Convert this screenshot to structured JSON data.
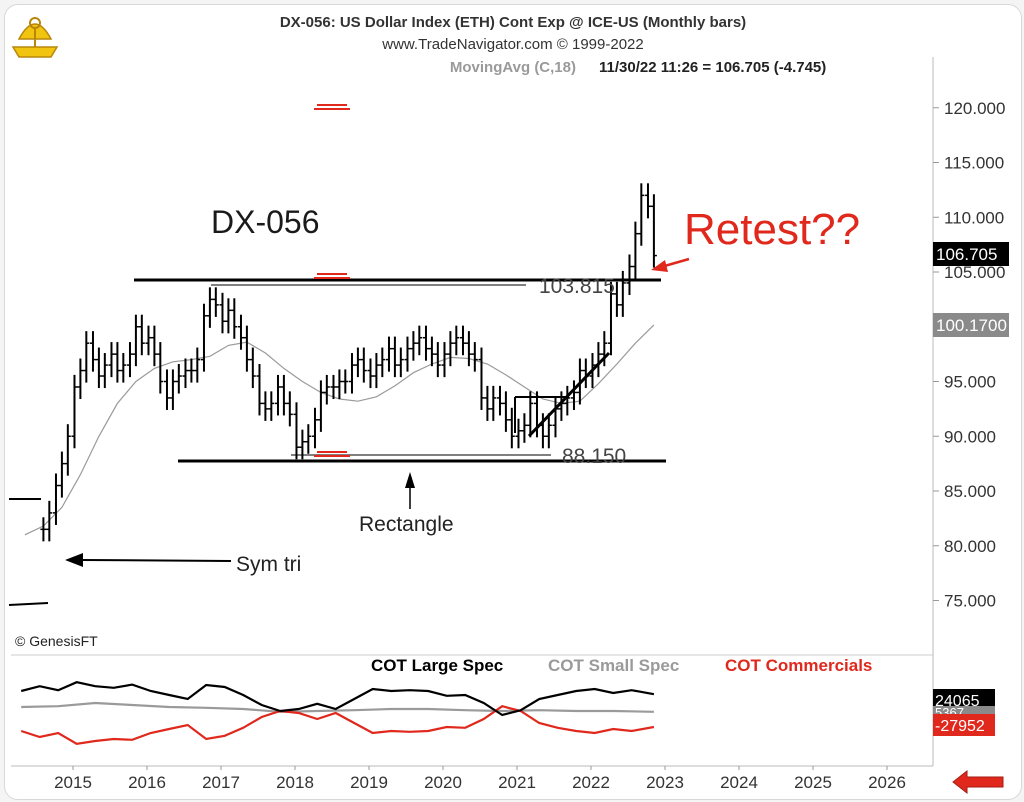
{
  "header": {
    "title": "DX-056:  US Dollar Index (ETH) Cont Exp @ ICE-US  (Monthly bars)",
    "copyright": "www.TradeNavigator.com © 1999-2022",
    "ma_label": "MovingAvg (C,18)",
    "price_readout": "11/30/22 11:26 = 106.705 (-4.745)"
  },
  "price_badges": {
    "last": "106.705",
    "ma": "100.1700"
  },
  "lower_badges": {
    "large_spec": "24065",
    "small_spec": "5367",
    "commercials": "-27952"
  },
  "watermark": "© GenesisFT",
  "annotations": {
    "symbol": "DX-056",
    "retest": "Retest??",
    "level_top": "103.815",
    "level_bottom": "88.150",
    "rectangle": "Rectangle",
    "sym_tri": "Sym tri"
  },
  "colors": {
    "price": "#000000",
    "ma": "#9a9a9a",
    "accent": "#e0281c",
    "large_spec": "#000000",
    "small_spec": "#9a9a9a",
    "commercials": "#e0281c"
  },
  "icons": {
    "logo": "sextant-logo-icon",
    "back": "back-arrow-icon"
  },
  "chart_data": [
    {
      "type": "line",
      "title": "DX-056:  US Dollar Index (ETH) Cont Exp @ ICE-US  (Monthly bars)",
      "y_ticks": [
        "120.000",
        "115.000",
        "110.000",
        "105.000",
        "100.000",
        "95.000",
        "90.000",
        "85.000",
        "80.000",
        "75.000"
      ],
      "x_ticks": [
        "2015",
        "2016",
        "2017",
        "2018",
        "2019",
        "2020",
        "2021",
        "2022",
        "2023",
        "2024",
        "2025",
        "2026"
      ],
      "ylim": [
        70,
        124
      ],
      "xlim": [
        2014.2,
        2026.8
      ],
      "series": [
        {
          "name": "Monthly bars",
          "x": [
            2014.6,
            2014.68,
            2014.77,
            2014.85,
            2014.93,
            2015.02,
            2015.1,
            2015.18,
            2015.27,
            2015.35,
            2015.43,
            2015.52,
            2015.6,
            2015.68,
            2015.77,
            2015.85,
            2015.93,
            2016.02,
            2016.1,
            2016.18,
            2016.27,
            2016.35,
            2016.43,
            2016.52,
            2016.6,
            2016.68,
            2016.77,
            2016.85,
            2016.93,
            2017.02,
            2017.1,
            2017.18,
            2017.27,
            2017.35,
            2017.43,
            2017.52,
            2017.6,
            2017.68,
            2017.77,
            2017.85,
            2017.93,
            2018.02,
            2018.1,
            2018.18,
            2018.27,
            2018.35,
            2018.43,
            2018.52,
            2018.6,
            2018.68,
            2018.77,
            2018.85,
            2018.93,
            2019.02,
            2019.1,
            2019.18,
            2019.27,
            2019.35,
            2019.43,
            2019.52,
            2019.6,
            2019.68,
            2019.77,
            2019.85,
            2019.93,
            2020.02,
            2020.1,
            2020.18,
            2020.27,
            2020.35,
            2020.43,
            2020.52,
            2020.6,
            2020.68,
            2020.77,
            2020.85,
            2020.93,
            2021.02,
            2021.1,
            2021.18,
            2021.27,
            2021.35,
            2021.43,
            2021.52,
            2021.6,
            2021.68,
            2021.77,
            2021.85,
            2021.93,
            2022.02,
            2022.1,
            2022.18,
            2022.27,
            2022.35,
            2022.43,
            2022.52,
            2022.6,
            2022.68,
            2022.77,
            2022.85
          ],
          "y": [
            81.5,
            83.0,
            85.5,
            87.5,
            90.0,
            94.5,
            96.0,
            98.5,
            97.0,
            95.5,
            96.5,
            97.5,
            96.0,
            96.5,
            97.5,
            100.0,
            98.5,
            99.0,
            97.5,
            95.0,
            93.5,
            95.0,
            95.5,
            96.0,
            96.0,
            97.0,
            101.0,
            102.5,
            102.0,
            100.5,
            101.5,
            100.0,
            99.0,
            97.0,
            95.5,
            93.0,
            92.5,
            93.0,
            94.5,
            93.0,
            92.0,
            89.0,
            89.5,
            90.0,
            91.5,
            94.0,
            94.5,
            94.5,
            95.0,
            95.0,
            96.5,
            97.0,
            96.0,
            95.5,
            96.5,
            97.0,
            98.0,
            96.5,
            97.0,
            98.0,
            98.5,
            99.0,
            98.0,
            97.5,
            96.5,
            97.5,
            98.5,
            99.0,
            98.5,
            97.5,
            97.0,
            93.5,
            92.5,
            93.5,
            93.0,
            91.5,
            90.0,
            90.5,
            91.0,
            93.0,
            91.0,
            90.0,
            91.0,
            92.5,
            93.0,
            93.5,
            94.0,
            96.0,
            95.5,
            96.5,
            97.5,
            98.5,
            103.0,
            102.0,
            104.0,
            105.5,
            108.5,
            112.0,
            111.0,
            106.5
          ]
        },
        {
          "name": "MovingAvg (C,18)",
          "x": [
            2014.35,
            2014.6,
            2014.85,
            2015.1,
            2015.35,
            2015.6,
            2015.85,
            2016.1,
            2016.35,
            2016.6,
            2016.85,
            2017.1,
            2017.35,
            2017.6,
            2017.85,
            2018.1,
            2018.35,
            2018.6,
            2018.85,
            2019.1,
            2019.35,
            2019.6,
            2019.85,
            2020.1,
            2020.35,
            2020.6,
            2020.85,
            2021.1,
            2021.35,
            2021.6,
            2021.85,
            2022.1,
            2022.35,
            2022.6,
            2022.85
          ],
          "y": [
            81.0,
            81.8,
            83.5,
            86.5,
            90.0,
            93.0,
            95.0,
            96.2,
            96.8,
            97.0,
            97.3,
            98.3,
            98.6,
            97.6,
            96.2,
            95.0,
            94.0,
            93.4,
            93.2,
            93.6,
            94.6,
            95.8,
            96.6,
            97.2,
            97.1,
            96.6,
            95.6,
            94.5,
            93.4,
            93.0,
            93.2,
            94.8,
            96.6,
            98.5,
            100.17
          ]
        }
      ]
    },
    {
      "type": "line",
      "title": "",
      "x_ticks": [
        "2015",
        "2016",
        "2017",
        "2018",
        "2019",
        "2020",
        "2021",
        "2022",
        "2023",
        "2024",
        "2025",
        "2026"
      ],
      "series": [
        {
          "name": "COT Large Spec",
          "x": [
            2014.3,
            2014.55,
            2014.8,
            2015.05,
            2015.3,
            2015.55,
            2015.8,
            2016.05,
            2016.3,
            2016.55,
            2016.8,
            2017.05,
            2017.3,
            2017.55,
            2017.8,
            2018.05,
            2018.3,
            2018.55,
            2018.8,
            2019.05,
            2019.3,
            2019.55,
            2019.8,
            2020.05,
            2020.3,
            2020.55,
            2020.8,
            2021.05,
            2021.3,
            2021.55,
            2021.8,
            2022.05,
            2022.3,
            2022.55,
            2022.85
          ],
          "y": [
            0.5,
            0.62,
            0.52,
            0.72,
            0.62,
            0.58,
            0.66,
            0.5,
            0.4,
            0.3,
            0.65,
            0.6,
            0.4,
            0.15,
            0.0,
            0.05,
            0.18,
            0.05,
            0.3,
            0.55,
            0.5,
            0.52,
            0.5,
            0.38,
            0.4,
            0.2,
            -0.1,
            0.02,
            0.3,
            0.4,
            0.5,
            0.55,
            0.45,
            0.52,
            0.42
          ]
        },
        {
          "name": "COT Small Spec",
          "x": [
            2014.3,
            2014.8,
            2015.3,
            2015.8,
            2016.3,
            2016.8,
            2017.3,
            2017.8,
            2018.3,
            2018.8,
            2019.3,
            2019.8,
            2020.3,
            2020.8,
            2021.3,
            2021.8,
            2022.3,
            2022.85
          ],
          "y": [
            0.1,
            0.12,
            0.2,
            0.15,
            0.1,
            0.08,
            0.05,
            -0.02,
            0.0,
            0.02,
            0.05,
            0.05,
            0.02,
            0.0,
            0.02,
            0.0,
            0.0,
            -0.02
          ]
        },
        {
          "name": "COT Commercials",
          "x": [
            2014.3,
            2014.55,
            2014.8,
            2015.05,
            2015.3,
            2015.55,
            2015.8,
            2016.05,
            2016.3,
            2016.55,
            2016.8,
            2017.05,
            2017.3,
            2017.55,
            2017.8,
            2018.05,
            2018.3,
            2018.55,
            2018.8,
            2019.05,
            2019.3,
            2019.55,
            2019.8,
            2020.05,
            2020.3,
            2020.55,
            2020.8,
            2021.05,
            2021.3,
            2021.55,
            2021.8,
            2022.05,
            2022.3,
            2022.55,
            2022.85
          ],
          "y": [
            -0.5,
            -0.65,
            -0.55,
            -0.82,
            -0.75,
            -0.7,
            -0.72,
            -0.55,
            -0.45,
            -0.35,
            -0.7,
            -0.62,
            -0.42,
            -0.15,
            0.0,
            -0.05,
            -0.2,
            -0.05,
            -0.3,
            -0.55,
            -0.5,
            -0.52,
            -0.5,
            -0.4,
            -0.42,
            -0.2,
            0.12,
            0.0,
            -0.3,
            -0.42,
            -0.5,
            -0.55,
            -0.45,
            -0.5,
            -0.4
          ]
        }
      ]
    }
  ]
}
